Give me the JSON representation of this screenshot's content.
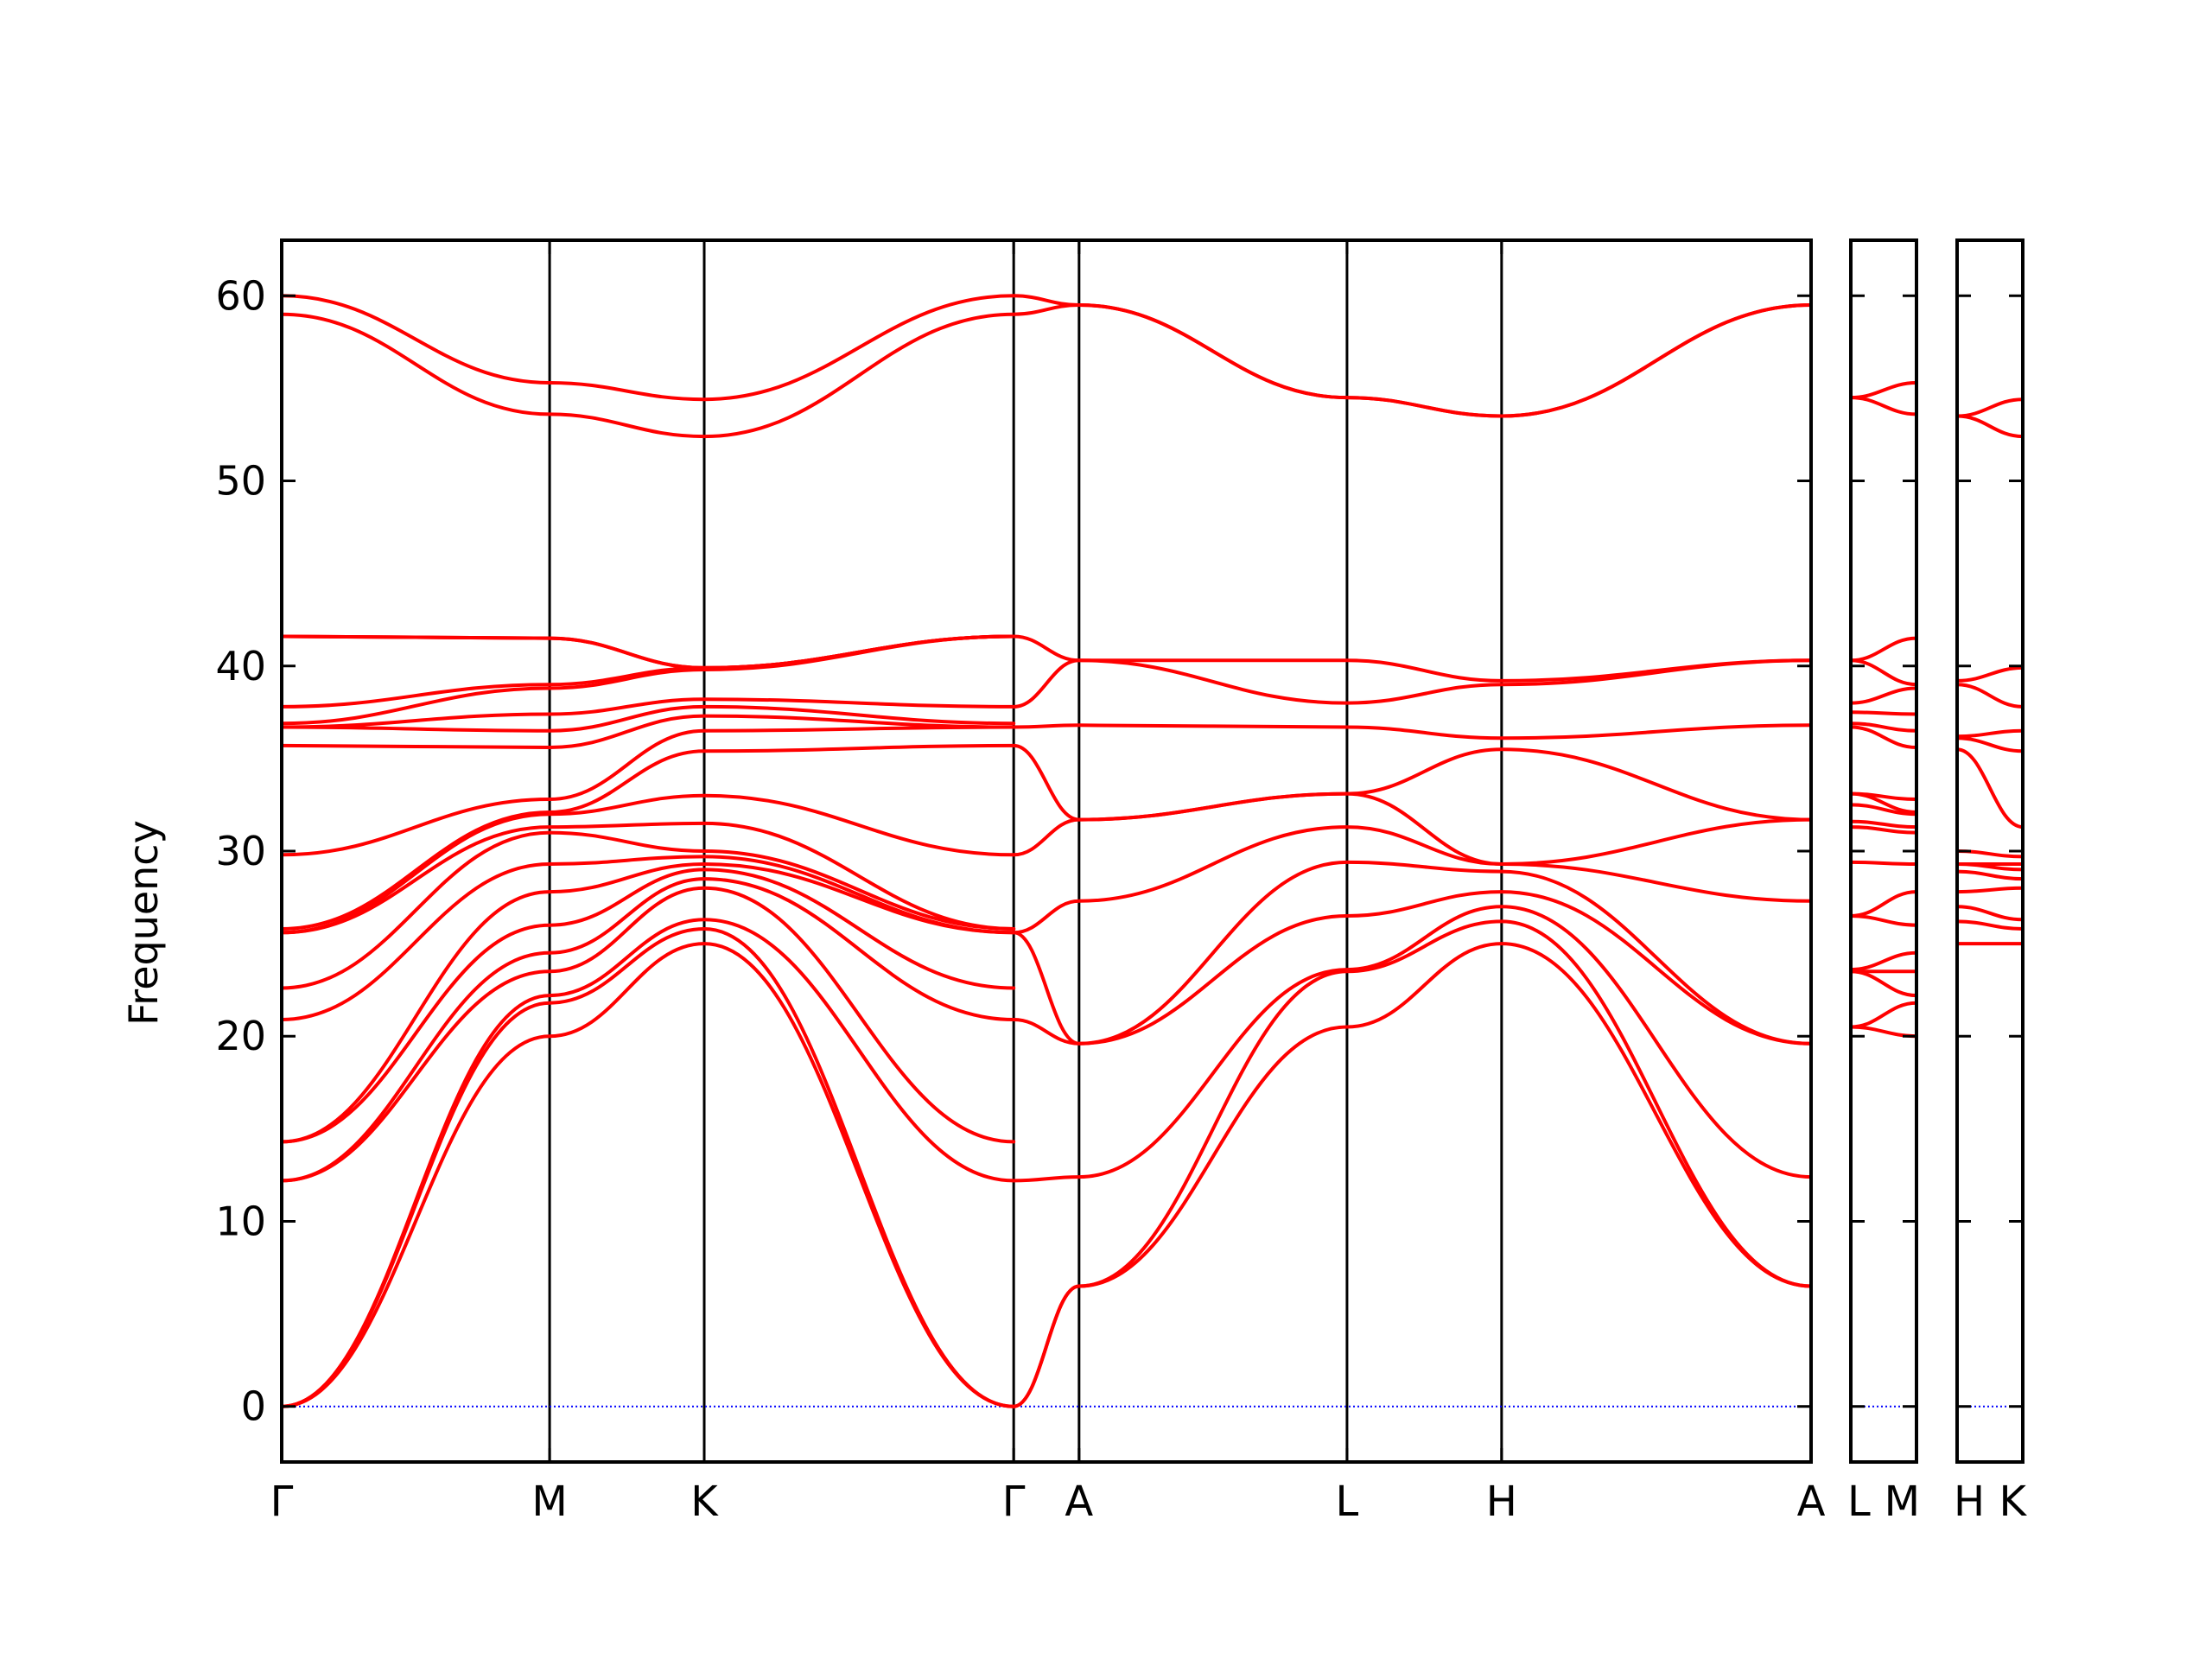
{
  "chart_data": {
    "type": "line",
    "title": "",
    "xlabel": "",
    "ylabel": "Frequency",
    "ylim": [
      -3,
      63
    ],
    "yticks": [
      0,
      10,
      20,
      30,
      40,
      50,
      60
    ],
    "grid": false,
    "legend": "none",
    "band_color": "#ff0000",
    "zero_line_color": "#0000ff",
    "panels": [
      {
        "kpoints": [
          "Γ",
          "M",
          "K",
          "Γ",
          "A",
          "L",
          "H",
          "A"
        ],
        "x_positions": [
          0,
          1,
          1.577,
          2.732,
          2.976,
          3.976,
          4.553,
          5.708
        ],
        "bands": [
          [
            [
              0,
              0
            ],
            [
              1,
              20.0
            ],
            [
              1.577,
              25.0
            ],
            [
              2.732,
              0
            ]
          ],
          [
            [
              0,
              0
            ],
            [
              1,
              21.8
            ],
            [
              1.577,
              25.8
            ],
            [
              2.732,
              0
            ]
          ],
          [
            [
              0,
              0
            ],
            [
              1,
              22.2
            ],
            [
              1.577,
              26.3
            ],
            [
              2.732,
              12.2
            ]
          ],
          [
            [
              0,
              12.2
            ],
            [
              1,
              23.5
            ],
            [
              1.577,
              28.0
            ],
            [
              2.732,
              14.3
            ]
          ],
          [
            [
              0,
              12.2
            ],
            [
              1,
              24.5
            ],
            [
              1.577,
              28.5
            ],
            [
              2.732,
              20.9
            ]
          ],
          [
            [
              0,
              14.3
            ],
            [
              1,
              26.0
            ],
            [
              1.577,
              29.0
            ],
            [
              2.732,
              22.6
            ]
          ],
          [
            [
              0,
              14.3
            ],
            [
              1,
              27.8
            ],
            [
              1.577,
              29.3
            ],
            [
              2.732,
              25.6
            ]
          ],
          [
            [
              0,
              20.9
            ],
            [
              1,
              29.3
            ],
            [
              1.577,
              29.7
            ],
            [
              2.732,
              25.6
            ]
          ],
          [
            [
              0,
              22.6
            ],
            [
              1,
              31.0
            ],
            [
              1.577,
              30.0
            ],
            [
              2.732,
              25.8
            ]
          ],
          [
            [
              0,
              25.6
            ],
            [
              1,
              31.3
            ],
            [
              1.577,
              31.5
            ],
            [
              2.732,
              25.8
            ]
          ],
          [
            [
              0,
              25.6
            ],
            [
              1,
              32.0
            ],
            [
              1.577,
              33.0
            ],
            [
              2.732,
              29.8
            ]
          ],
          [
            [
              0,
              25.8
            ],
            [
              1,
              32.1
            ],
            [
              1.577,
              35.4
            ],
            [
              2.732,
              35.7
            ]
          ],
          [
            [
              0,
              29.8
            ],
            [
              1,
              32.8
            ],
            [
              1.577,
              36.5
            ],
            [
              2.732,
              36.7
            ]
          ],
          [
            [
              0,
              35.7
            ],
            [
              1,
              35.6
            ],
            [
              1.577,
              37.3
            ],
            [
              2.732,
              36.7
            ]
          ],
          [
            [
              0,
              36.7
            ],
            [
              1,
              36.5
            ],
            [
              1.577,
              37.8
            ],
            [
              2.732,
              36.9
            ]
          ],
          [
            [
              0,
              36.7
            ],
            [
              1,
              37.4
            ],
            [
              1.577,
              38.2
            ],
            [
              2.732,
              37.8
            ]
          ],
          [
            [
              0,
              36.9
            ],
            [
              1,
              38.8
            ],
            [
              1.577,
              39.8
            ],
            [
              2.732,
              41.6
            ]
          ],
          [
            [
              0,
              37.8
            ],
            [
              1,
              39.0
            ],
            [
              1.577,
              39.9
            ],
            [
              2.732,
              41.6
            ]
          ],
          [
            [
              0,
              41.6
            ],
            [
              1,
              41.5
            ],
            [
              1.577,
              39.9
            ],
            [
              2.732,
              41.6
            ]
          ],
          [
            [
              0,
              41.6
            ],
            [
              1,
              41.5
            ],
            [
              1.577,
              39.9
            ],
            [
              2.732,
              41.6
            ]
          ],
          [
            [
              0,
              59.0
            ],
            [
              1,
              53.6
            ],
            [
              1.577,
              52.4
            ],
            [
              2.732,
              59.0
            ]
          ],
          [
            [
              0,
              60.0
            ],
            [
              1,
              55.3
            ],
            [
              1.577,
              54.4
            ],
            [
              2.732,
              60.0
            ]
          ],
          [
            [
              2.732,
              0
            ],
            [
              2.976,
              6.5
            ],
            [
              3.976,
              20.5
            ],
            [
              4.553,
              25.0
            ],
            [
              5.708,
              6.5
            ]
          ],
          [
            [
              2.732,
              0
            ],
            [
              2.976,
              6.5
            ],
            [
              3.976,
              23.5
            ],
            [
              4.553,
              26.2
            ],
            [
              5.708,
              6.5
            ]
          ],
          [
            [
              2.732,
              12.2
            ],
            [
              2.976,
              12.4
            ],
            [
              3.976,
              23.6
            ],
            [
              4.553,
              27.0
            ],
            [
              5.708,
              12.4
            ]
          ],
          [
            [
              2.732,
              25.6
            ],
            [
              2.976,
              19.6
            ],
            [
              3.976,
              26.5
            ],
            [
              4.553,
              27.8
            ],
            [
              5.708,
              19.6
            ]
          ],
          [
            [
              2.732,
              20.9
            ],
            [
              2.976,
              19.6
            ],
            [
              3.976,
              29.4
            ],
            [
              4.553,
              28.9
            ],
            [
              5.708,
              19.6
            ]
          ],
          [
            [
              2.732,
              25.6
            ],
            [
              2.976,
              27.3
            ],
            [
              3.976,
              31.3
            ],
            [
              4.553,
              29.3
            ],
            [
              5.708,
              27.3
            ]
          ],
          [
            [
              2.732,
              29.8
            ],
            [
              2.976,
              31.7
            ],
            [
              3.976,
              33.1
            ],
            [
              4.553,
              35.5
            ],
            [
              5.708,
              31.7
            ]
          ],
          [
            [
              2.732,
              35.7
            ],
            [
              2.976,
              31.7
            ],
            [
              3.976,
              33.1
            ],
            [
              4.553,
              29.3
            ],
            [
              5.708,
              31.7
            ]
          ],
          [
            [
              2.732,
              36.7
            ],
            [
              2.976,
              36.8
            ],
            [
              3.976,
              36.7
            ],
            [
              4.553,
              36.1
            ],
            [
              5.708,
              36.8
            ]
          ],
          [
            [
              2.732,
              37.8
            ],
            [
              2.976,
              40.3
            ],
            [
              3.976,
              38.0
            ],
            [
              4.553,
              39.0
            ],
            [
              5.708,
              40.3
            ]
          ],
          [
            [
              2.732,
              41.6
            ],
            [
              2.976,
              40.3
            ],
            [
              3.976,
              40.3
            ],
            [
              4.553,
              39.2
            ],
            [
              5.708,
              40.3
            ]
          ],
          [
            [
              2.732,
              59.0
            ],
            [
              2.976,
              59.5
            ],
            [
              3.976,
              54.5
            ],
            [
              4.553,
              53.5
            ],
            [
              5.708,
              59.5
            ]
          ],
          [
            [
              2.732,
              60.0
            ],
            [
              2.976,
              59.5
            ],
            [
              3.976,
              54.5
            ],
            [
              4.553,
              53.5
            ],
            [
              5.708,
              59.5
            ]
          ]
        ]
      },
      {
        "kpoints": [
          "L",
          "M"
        ],
        "x_positions": [
          0,
          1
        ],
        "bands": [
          [
            [
              0,
              20.5
            ],
            [
              1,
              20.0
            ]
          ],
          [
            [
              0,
              20.5
            ],
            [
              1,
              21.8
            ]
          ],
          [
            [
              0,
              23.5
            ],
            [
              1,
              22.2
            ]
          ],
          [
            [
              0,
              23.5
            ],
            [
              1,
              23.5
            ]
          ],
          [
            [
              0,
              23.6
            ],
            [
              1,
              24.5
            ]
          ],
          [
            [
              0,
              26.5
            ],
            [
              1,
              26.0
            ]
          ],
          [
            [
              0,
              26.5
            ],
            [
              1,
              27.8
            ]
          ],
          [
            [
              0,
              29.4
            ],
            [
              1,
              29.3
            ]
          ],
          [
            [
              0,
              31.3
            ],
            [
              1,
              31.0
            ]
          ],
          [
            [
              0,
              31.6
            ],
            [
              1,
              31.3
            ]
          ],
          [
            [
              0,
              32.5
            ],
            [
              1,
              32.0
            ]
          ],
          [
            [
              0,
              33.1
            ],
            [
              1,
              32.1
            ]
          ],
          [
            [
              0,
              33.1
            ],
            [
              1,
              32.8
            ]
          ],
          [
            [
              0,
              36.7
            ],
            [
              1,
              35.6
            ]
          ],
          [
            [
              0,
              36.9
            ],
            [
              1,
              36.5
            ]
          ],
          [
            [
              0,
              37.5
            ],
            [
              1,
              37.4
            ]
          ],
          [
            [
              0,
              38.0
            ],
            [
              1,
              38.8
            ]
          ],
          [
            [
              0,
              40.3
            ],
            [
              1,
              39.0
            ]
          ],
          [
            [
              0,
              40.3
            ],
            [
              1,
              41.5
            ]
          ],
          [
            [
              0,
              54.5
            ],
            [
              1,
              53.6
            ]
          ],
          [
            [
              0,
              54.5
            ],
            [
              1,
              55.3
            ]
          ]
        ]
      },
      {
        "kpoints": [
          "H",
          "K"
        ],
        "x_positions": [
          0,
          1
        ],
        "bands": [
          [
            [
              0,
              25.0
            ],
            [
              1,
              25.0
            ]
          ],
          [
            [
              0,
              26.2
            ],
            [
              1,
              25.8
            ]
          ],
          [
            [
              0,
              27.0
            ],
            [
              1,
              26.3
            ]
          ],
          [
            [
              0,
              27.8
            ],
            [
              1,
              28.0
            ]
          ],
          [
            [
              0,
              28.9
            ],
            [
              1,
              28.5
            ]
          ],
          [
            [
              0,
              29.3
            ],
            [
              1,
              29.0
            ]
          ],
          [
            [
              0,
              29.3
            ],
            [
              1,
              29.3
            ]
          ],
          [
            [
              0,
              30.0
            ],
            [
              1,
              29.7
            ]
          ],
          [
            [
              0,
              35.5
            ],
            [
              1,
              31.3
            ]
          ],
          [
            [
              0,
              36.1
            ],
            [
              1,
              35.4
            ]
          ],
          [
            [
              0,
              36.2
            ],
            [
              1,
              36.5
            ]
          ],
          [
            [
              0,
              39.0
            ],
            [
              1,
              37.8
            ]
          ],
          [
            [
              0,
              39.2
            ],
            [
              1,
              39.9
            ]
          ],
          [
            [
              0,
              53.5
            ],
            [
              1,
              52.4
            ]
          ],
          [
            [
              0,
              53.5
            ],
            [
              1,
              54.4
            ]
          ]
        ]
      }
    ]
  }
}
